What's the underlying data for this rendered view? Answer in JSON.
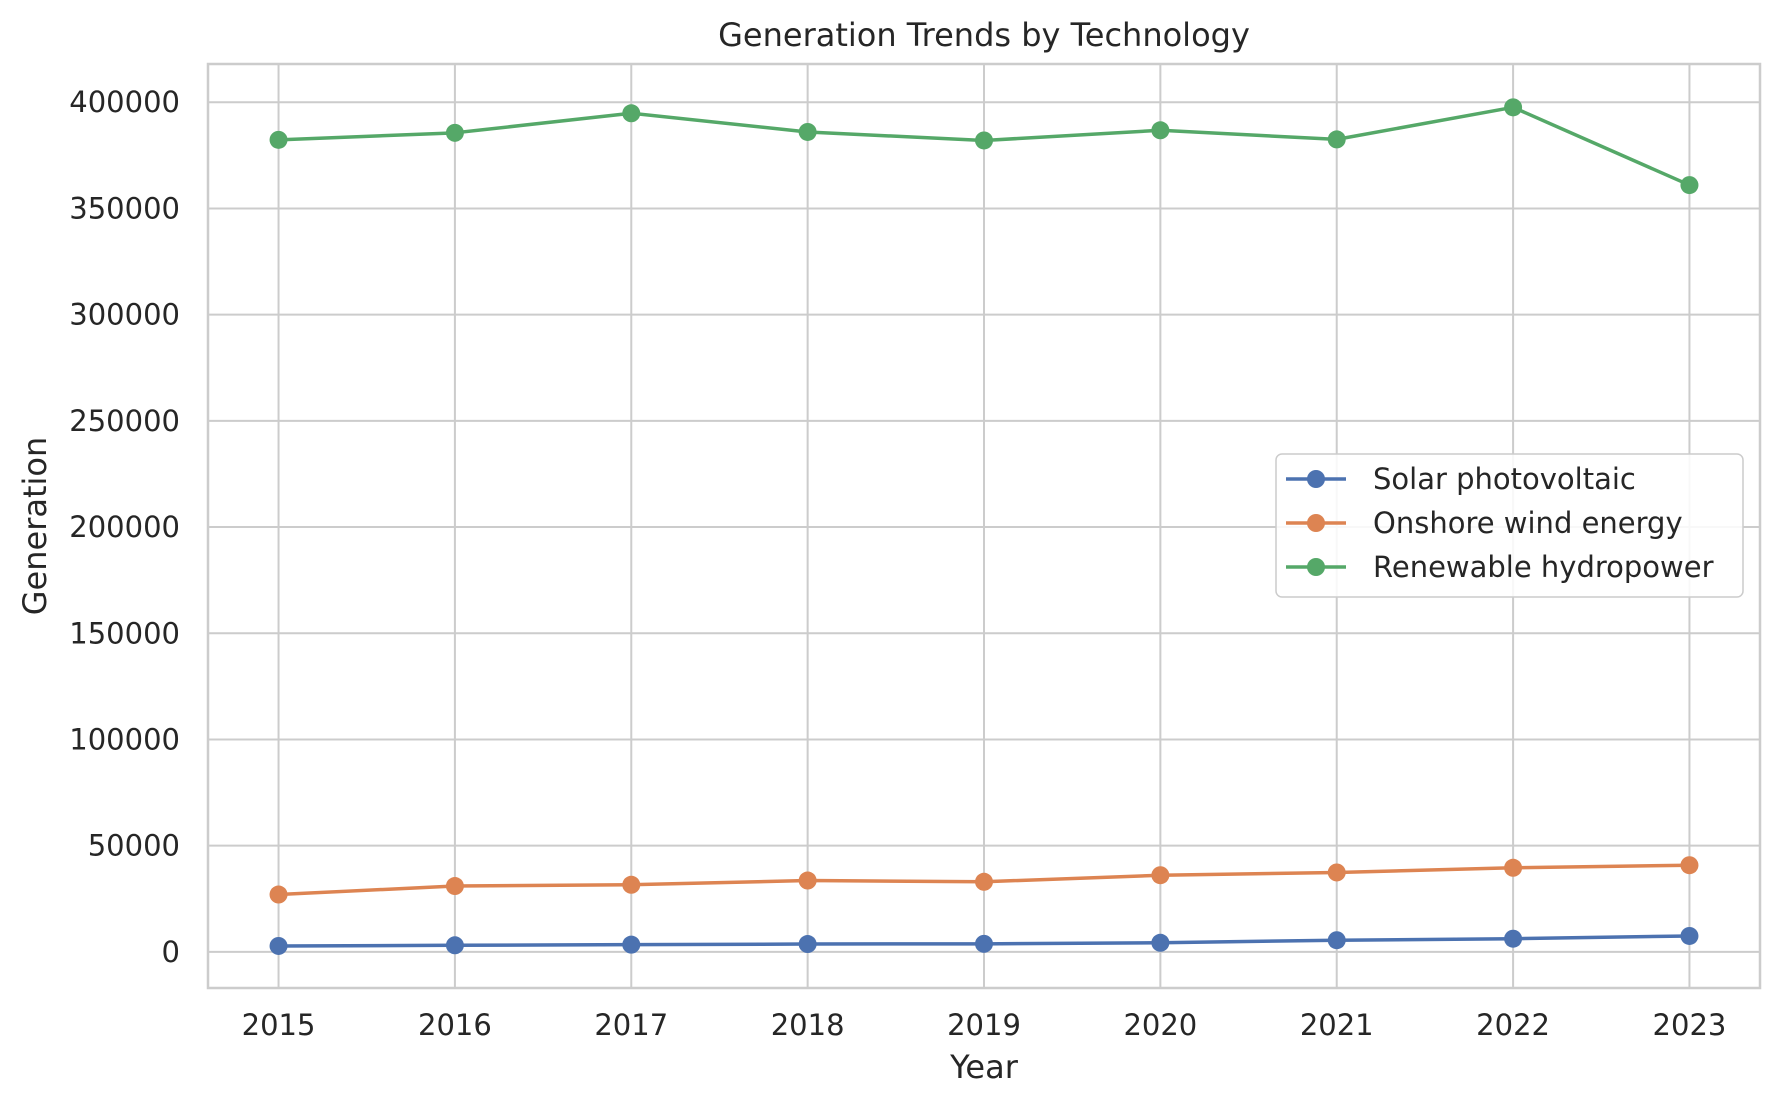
{
  "chart_data": {
    "type": "line",
    "title": "Generation Trends by Technology",
    "xlabel": "Year",
    "ylabel": "Generation",
    "x": [
      2015,
      2016,
      2017,
      2018,
      2019,
      2020,
      2021,
      2022,
      2023
    ],
    "xticks": [
      "2015",
      "2016",
      "2017",
      "2018",
      "2019",
      "2020",
      "2021",
      "2022",
      "2023"
    ],
    "xlim": [
      2014.6,
      2023.4
    ],
    "ylim": [
      -17000,
      418000
    ],
    "yticks": [
      0,
      50000,
      100000,
      150000,
      200000,
      250000,
      300000,
      350000,
      400000
    ],
    "ytick_labels": [
      "0",
      "50000",
      "100000",
      "150000",
      "200000",
      "250000",
      "300000",
      "350000",
      "400000"
    ],
    "grid": true,
    "legend_position": "center-right",
    "series": [
      {
        "name": "Solar photovoltaic",
        "color": "#4c72b0",
        "values": [
          2800,
          3100,
          3400,
          3700,
          3800,
          4300,
          5500,
          6200,
          7500
        ]
      },
      {
        "name": "Onshore wind energy",
        "color": "#dd8452",
        "values": [
          27000,
          31000,
          31600,
          33600,
          33000,
          36100,
          37400,
          39600,
          40800
        ]
      },
      {
        "name": "Renewable hydropower",
        "color": "#55a868",
        "values": [
          382300,
          385600,
          394800,
          386000,
          382000,
          386800,
          382500,
          397600,
          361000
        ]
      }
    ]
  }
}
